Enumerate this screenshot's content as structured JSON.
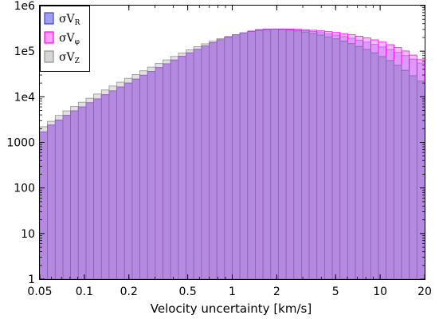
{
  "chart_data": {
    "type": "bar",
    "subtype": "histogram",
    "x_scale": "log",
    "y_scale": "log",
    "xlim": [
      0.05,
      20
    ],
    "ylim": [
      1,
      1000000
    ],
    "xlabel": "Velocity uncertainty [km/s]",
    "ylabel": "",
    "title": "",
    "grid": false,
    "legend_position": "top-left",
    "x_ticks": [
      {
        "value": 0.05,
        "label": "0.05"
      },
      {
        "value": 0.1,
        "label": "0.1"
      },
      {
        "value": 0.2,
        "label": "0.2"
      },
      {
        "value": 0.5,
        "label": "0.5"
      },
      {
        "value": 1,
        "label": "1"
      },
      {
        "value": 2,
        "label": "2"
      },
      {
        "value": 5,
        "label": "5"
      },
      {
        "value": 10,
        "label": "10"
      },
      {
        "value": 20,
        "label": "20"
      }
    ],
    "y_ticks": [
      {
        "value": 1,
        "label": "1"
      },
      {
        "value": 10,
        "label": "10"
      },
      {
        "value": 100,
        "label": "100"
      },
      {
        "value": 1000,
        "label": "1000"
      },
      {
        "value": 10000,
        "label": "1e4"
      },
      {
        "value": 100000,
        "label": "1e5"
      },
      {
        "value": 1000000,
        "label": "1e6"
      }
    ],
    "bins": 50,
    "series": [
      {
        "name": "σV_R",
        "legend_main": "σV",
        "legend_sub": "R",
        "fill": "#7f7ff0",
        "stroke": "#4040d0",
        "values": [
          1700,
          2400,
          3100,
          3900,
          4900,
          6000,
          7400,
          9000,
          11100,
          13500,
          16400,
          20000,
          24400,
          29700,
          36000,
          43700,
          53000,
          64000,
          77000,
          92000,
          110000,
          131000,
          154000,
          178000,
          203000,
          228000,
          252000,
          275000,
          296000,
          304000,
          305000,
          302000,
          298000,
          291000,
          281000,
          270000,
          256000,
          241000,
          225000,
          209000,
          192000,
          175000,
          158000,
          141000,
          124000,
          109000,
          94000,
          80000,
          67000,
          55000
        ]
      },
      {
        "name": "σV_φ",
        "legend_main": "σV",
        "legend_sub": "φ",
        "fill": "#ff80ff",
        "stroke": "#ff00ff",
        "values": [
          1700,
          2400,
          3100,
          3900,
          4900,
          6000,
          7400,
          9000,
          11100,
          13500,
          16400,
          20000,
          24400,
          29700,
          36000,
          43700,
          53000,
          64000,
          77000,
          92000,
          110000,
          131000,
          154000,
          178000,
          203000,
          228000,
          252000,
          275000,
          296000,
          304000,
          308000,
          308000,
          306000,
          301000,
          296000,
          288000,
          279000,
          268000,
          257000,
          243000,
          229000,
          212000,
          195000,
          177000,
          158000,
          139000,
          120000,
          101000,
          82000,
          65000
        ]
      },
      {
        "name": "σV_Z",
        "legend_main": "σV",
        "legend_sub": "Z",
        "fill": "#c8c8c8",
        "stroke": "#909090",
        "values": [
          2200,
          2900,
          3900,
          4900,
          6100,
          7600,
          9300,
          11500,
          14100,
          17200,
          20900,
          25400,
          30800,
          37200,
          44800,
          53800,
          64300,
          76600,
          91000,
          107000,
          125000,
          145000,
          166000,
          188000,
          210000,
          231000,
          251000,
          270000,
          286000,
          298000,
          302000,
          298000,
          290000,
          278000,
          263000,
          245000,
          226000,
          206000,
          186000,
          166000,
          146000,
          127000,
          109000,
          92000,
          76000,
          62000,
          49000,
          38000,
          29000,
          22000
        ]
      }
    ],
    "overlap_color": "#b48ae0"
  }
}
